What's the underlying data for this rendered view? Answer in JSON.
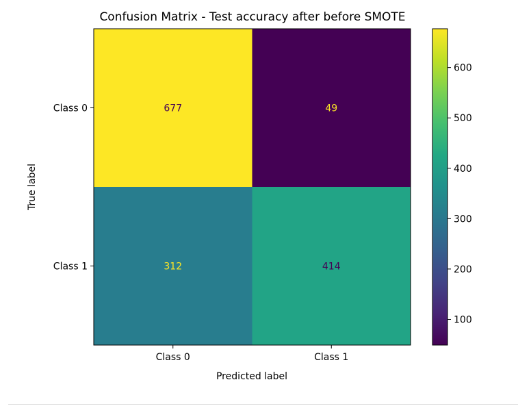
{
  "chart_data": {
    "type": "heatmap",
    "title": "Confusion Matrix - Test accuracy after before SMOTE",
    "xlabel": "Predicted label",
    "ylabel": "True label",
    "x_categories": [
      "Class 0",
      "Class 1"
    ],
    "y_categories": [
      "Class 0",
      "Class 1"
    ],
    "values": [
      [
        677,
        49
      ],
      [
        312,
        414
      ]
    ],
    "colormap": "viridis",
    "colorbar": {
      "range": [
        49,
        677
      ],
      "ticks": [
        100,
        200,
        300,
        400,
        500,
        600
      ]
    },
    "grid": false
  }
}
